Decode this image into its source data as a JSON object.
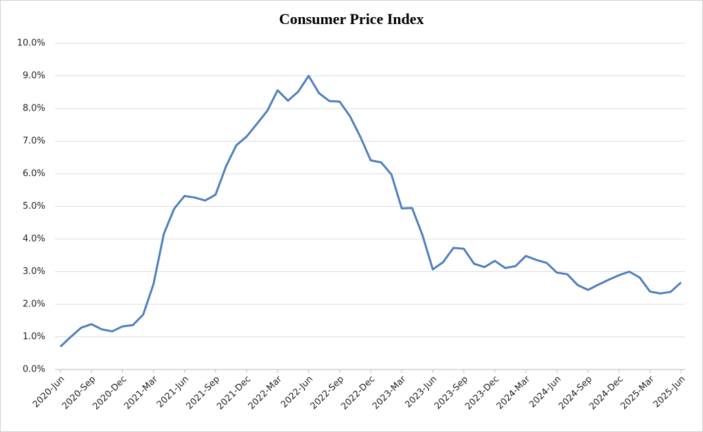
{
  "chart_data": {
    "type": "line",
    "title": "Consumer Price Index",
    "categories": [
      "2020-Jun",
      null,
      null,
      "2020-Sep",
      null,
      null,
      "2020-Dec",
      null,
      null,
      "2021-Mar",
      null,
      null,
      "2021-Jun",
      null,
      null,
      "2021-Sep",
      null,
      null,
      "2021-Dec",
      null,
      null,
      "2022-Mar",
      null,
      null,
      "2022-Jun",
      null,
      null,
      "2022-Sep",
      null,
      null,
      "2022-Dec",
      null,
      null,
      "2023-Mar",
      null,
      null,
      "2023-Jun",
      null,
      null,
      "2023-Sep",
      null,
      null,
      "2023-Dec",
      null,
      null,
      "2024-Mar",
      null,
      null,
      "2024-Jun",
      null,
      null,
      "2024-Sep",
      null,
      null,
      "2024-Dec",
      null,
      null,
      "2025-Mar",
      null,
      null,
      "2025-Jun"
    ],
    "series": [
      {
        "color": "#4f7fbf",
        "values": [
          0.7,
          1.0,
          1.28,
          1.39,
          1.23,
          1.17,
          1.32,
          1.36,
          1.68,
          2.62,
          4.16,
          4.93,
          5.32,
          5.27,
          5.18,
          5.36,
          6.22,
          6.87,
          7.14,
          7.53,
          7.93,
          8.56,
          8.24,
          8.52,
          9.0,
          8.47,
          8.23,
          8.21,
          7.76,
          7.13,
          6.41,
          6.35,
          5.98,
          4.94,
          4.95,
          4.12,
          3.07,
          3.29,
          3.73,
          3.7,
          3.24,
          3.14,
          3.33,
          3.11,
          3.17,
          3.48,
          3.36,
          3.27,
          2.97,
          2.92,
          2.59,
          2.44,
          2.6,
          2.75,
          2.89,
          3.0,
          2.82,
          2.39,
          2.33,
          2.38,
          2.67
        ]
      }
    ],
    "ylim": [
      0,
      10
    ],
    "yticks": [
      {
        "value": 0,
        "label": "0.0%"
      },
      {
        "value": 1,
        "label": "1.0%"
      },
      {
        "value": 2,
        "label": "2.0%"
      },
      {
        "value": 3,
        "label": "3.0%"
      },
      {
        "value": 4,
        "label": "4.0%"
      },
      {
        "value": 5,
        "label": "5.0%"
      },
      {
        "value": 6,
        "label": "6.0%"
      },
      {
        "value": 7,
        "label": "7.0%"
      },
      {
        "value": 8,
        "label": "8.0%"
      },
      {
        "value": 9,
        "label": "9.0%"
      },
      {
        "value": 10,
        "label": "10.0%"
      }
    ],
    "grid": true
  }
}
